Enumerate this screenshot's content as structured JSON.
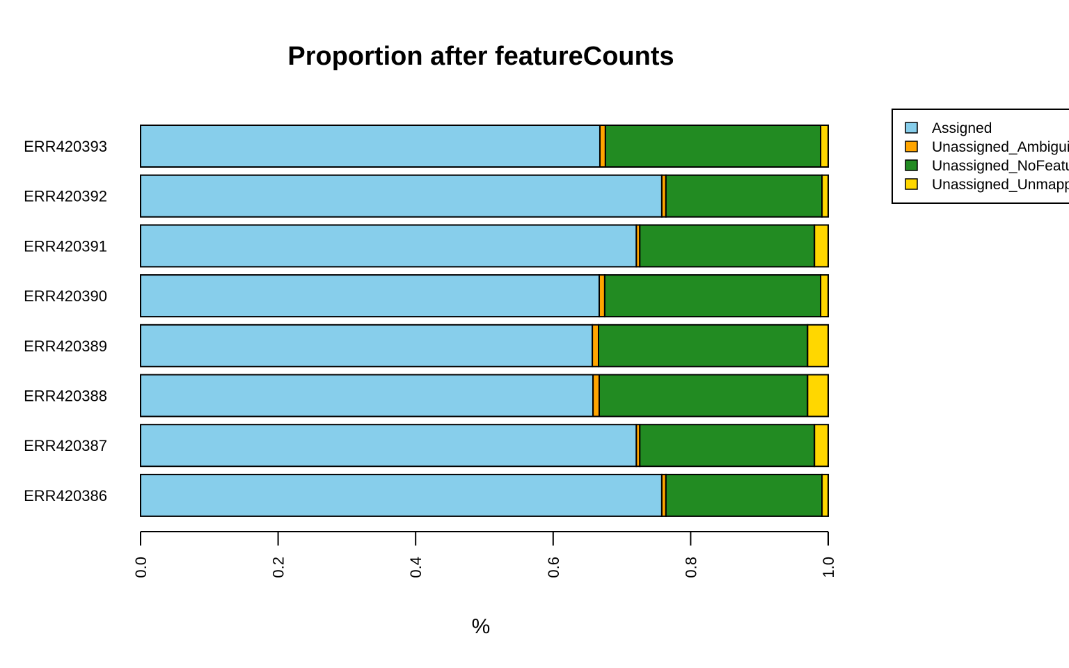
{
  "chart_data": {
    "type": "bar",
    "orientation": "horizontal",
    "stacked": true,
    "title": "Proportion after featureCounts",
    "xlabel": "%",
    "ylabel": "",
    "xlim": [
      0,
      1
    ],
    "xticks": [
      "0.0",
      "0.2",
      "0.4",
      "0.6",
      "0.8",
      "1.0"
    ],
    "categories": [
      "ERR420393",
      "ERR420392",
      "ERR420391",
      "ERR420390",
      "ERR420389",
      "ERR420388",
      "ERR420387",
      "ERR420386"
    ],
    "series": [
      {
        "name": "Assigned",
        "color": "#87CEEB",
        "values": [
          0.668,
          0.758,
          0.721,
          0.667,
          0.657,
          0.658,
          0.721,
          0.758
        ]
      },
      {
        "name": "Unassigned_Ambiguity",
        "color": "#FFA500",
        "values": [
          0.008,
          0.006,
          0.005,
          0.008,
          0.009,
          0.009,
          0.005,
          0.006
        ]
      },
      {
        "name": "Unassigned_NoFeatures",
        "color": "#228B22",
        "values": [
          0.313,
          0.227,
          0.254,
          0.314,
          0.304,
          0.303,
          0.254,
          0.227
        ]
      },
      {
        "name": "Unassigned_Unmapped",
        "color": "#FFD700",
        "values": [
          0.011,
          0.009,
          0.02,
          0.011,
          0.03,
          0.03,
          0.02,
          0.009
        ]
      }
    ],
    "grid": false,
    "legend_position": "top-right"
  }
}
